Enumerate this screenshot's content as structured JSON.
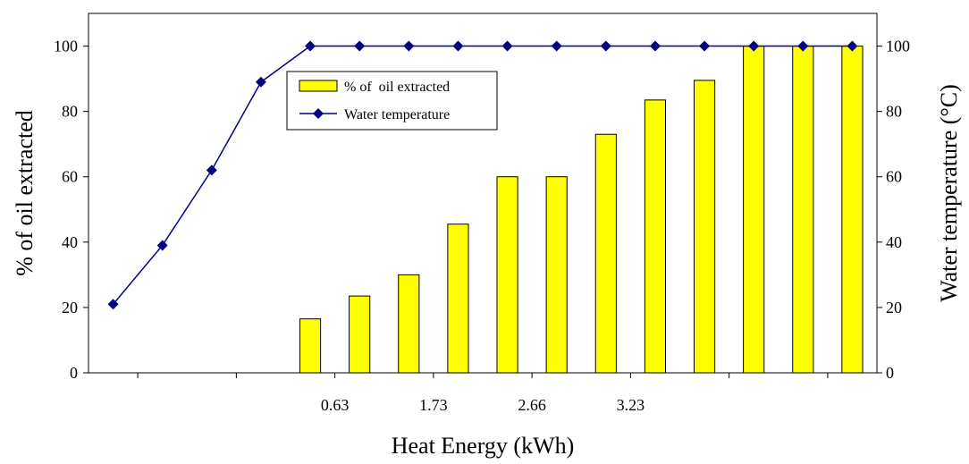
{
  "chart_data": {
    "type": "bar+line",
    "x_tick_labels": [
      "0.63",
      "1.73",
      "2.66",
      "3.23"
    ],
    "x_tick_label_positions": [
      5,
      7,
      9,
      11
    ],
    "categories": [
      "",
      "",
      "",
      "",
      "",
      "",
      "",
      "",
      "",
      "",
      "",
      "",
      "",
      "",
      "",
      ""
    ],
    "series": [
      {
        "name": "% of  oil extracted",
        "kind": "bar",
        "axis": "left",
        "color": "#ffff00",
        "values": [
          null,
          null,
          null,
          null,
          16.5,
          23.5,
          30,
          45.5,
          60,
          60,
          73,
          83.5,
          89.5,
          100,
          100,
          100
        ]
      },
      {
        "name": "Water temperature",
        "kind": "line",
        "axis": "right",
        "color": "#000080",
        "values": [
          21,
          39,
          62,
          89,
          100,
          100,
          100,
          100,
          100,
          100,
          100,
          100,
          100,
          100,
          100,
          100
        ]
      }
    ],
    "left_axis": {
      "label": "% of oil extracted",
      "range": [
        0,
        110
      ],
      "ticks": [
        0,
        20,
        40,
        60,
        80,
        100
      ]
    },
    "right_axis": {
      "label": "Water temperature (°C)",
      "range": [
        0,
        110
      ],
      "ticks": [
        0,
        20,
        40,
        60,
        80,
        100
      ]
    },
    "xlabel": "Heat Energy (kWh)",
    "grid": false,
    "legend_position": "top-center"
  }
}
